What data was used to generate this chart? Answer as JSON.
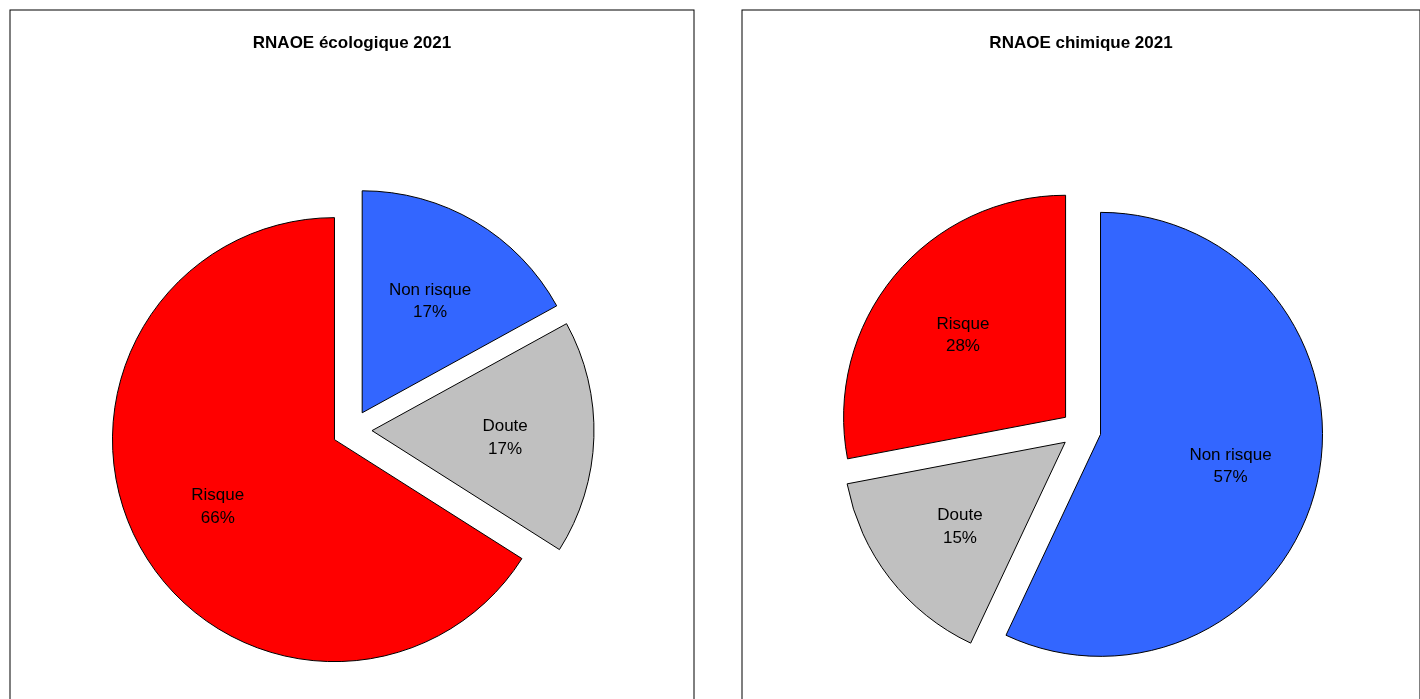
{
  "chart_data": [
    {
      "type": "pie",
      "title": "RNAOE écologique 2021",
      "categories": [
        "Non risque",
        "Doute",
        "Risque"
      ],
      "values": [
        17,
        17,
        66
      ],
      "colors": [
        "#3366ff",
        "#c0c0c0",
        "#ff0000"
      ],
      "value_labels": [
        "17%",
        "17%",
        "66%"
      ]
    },
    {
      "type": "pie",
      "title": "RNAOE chimique 2021",
      "categories": [
        "Non risque",
        "Doute",
        "Risque"
      ],
      "values": [
        57,
        15,
        28
      ],
      "colors": [
        "#3366ff",
        "#c0c0c0",
        "#ff0000"
      ],
      "value_labels": [
        "57%",
        "15%",
        "28%"
      ]
    }
  ]
}
